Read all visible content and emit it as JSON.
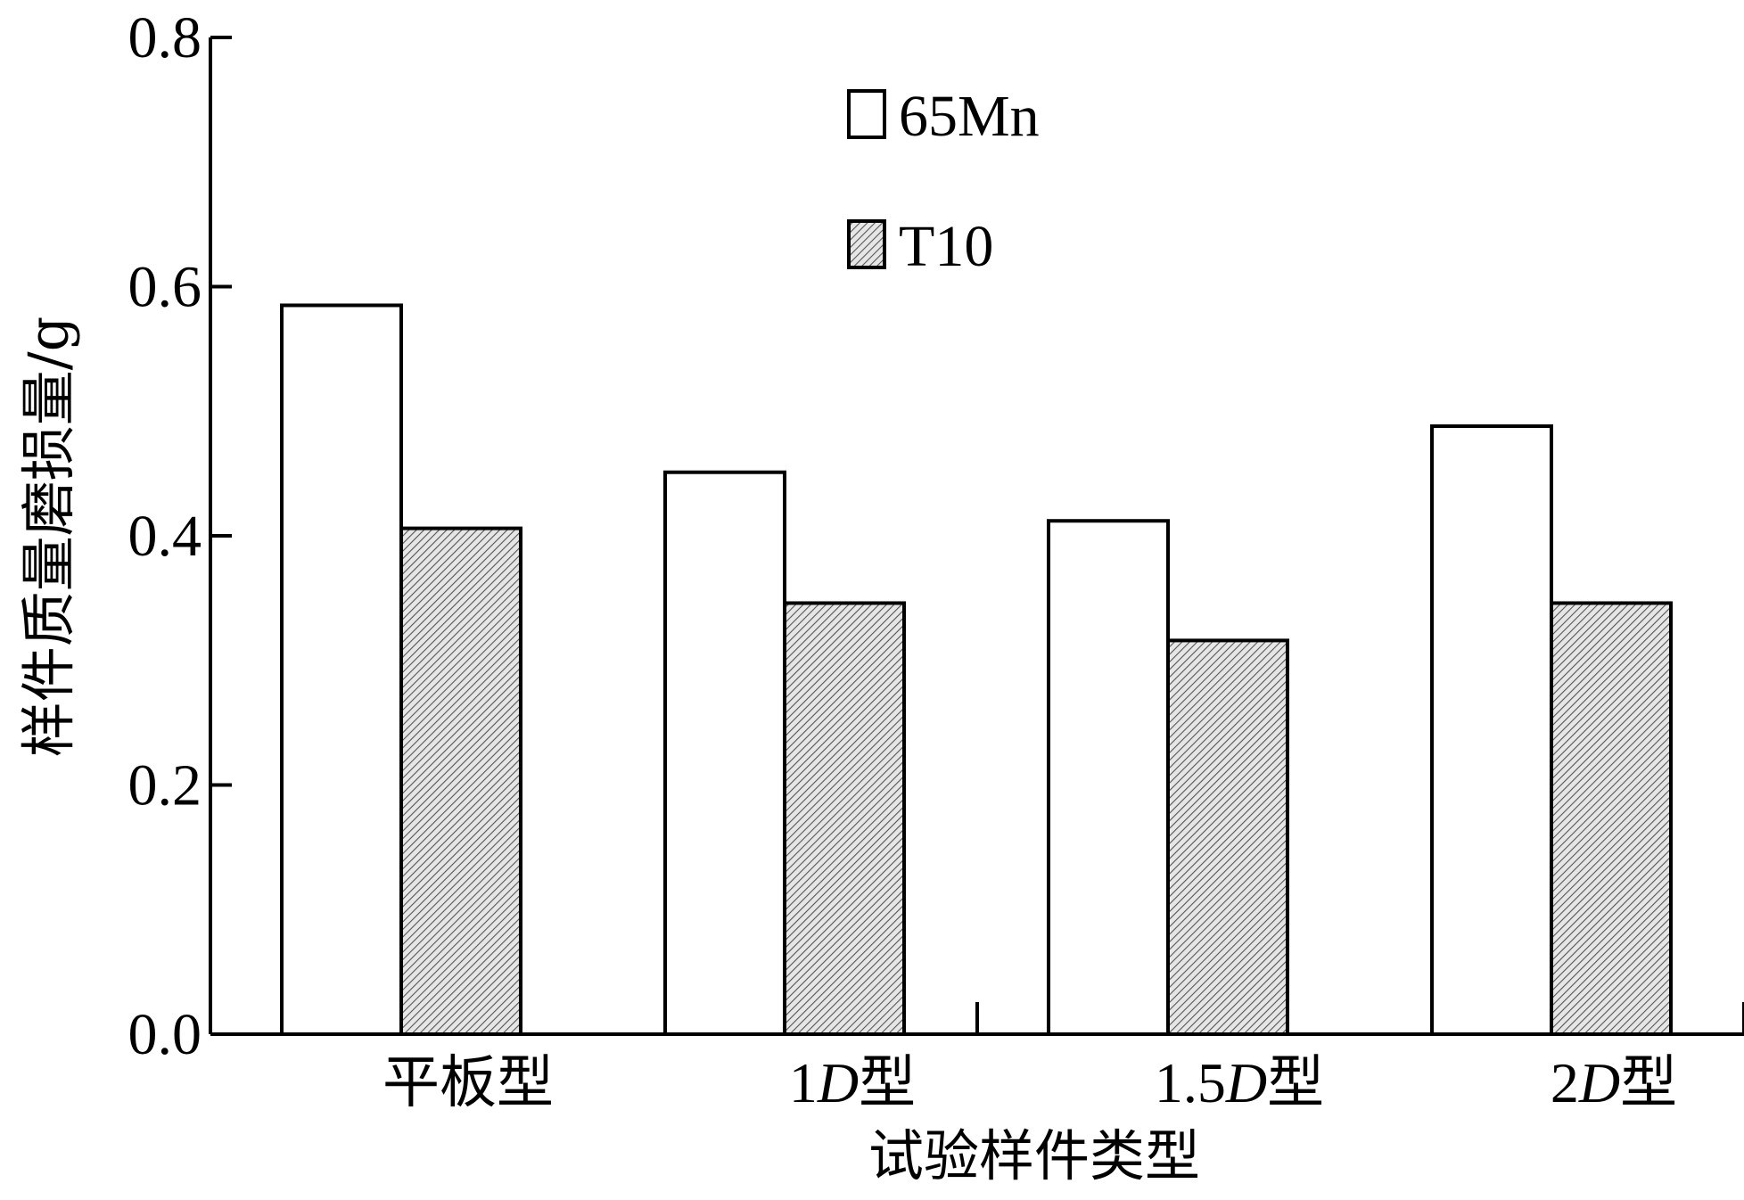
{
  "chart_data": {
    "type": "bar",
    "title": "",
    "xlabel": "试验样件类型",
    "ylabel": "样件质量磨损量/g",
    "ylim": [
      0,
      0.8
    ],
    "yticks": [
      "0.0",
      "0.2",
      "0.4",
      "0.6",
      "0.8"
    ],
    "categories": [
      {
        "prefix": "",
        "italic": "",
        "suffix": "平板型"
      },
      {
        "prefix": "1",
        "italic": "D",
        "suffix": "型"
      },
      {
        "prefix": "1.5",
        "italic": "D",
        "suffix": "型"
      },
      {
        "prefix": "2",
        "italic": "D",
        "suffix": "型"
      }
    ],
    "series": [
      {
        "name": "65Mn",
        "values": [
          0.585,
          0.451,
          0.412,
          0.488
        ],
        "fill": "#ffffff"
      },
      {
        "name": "T10",
        "values": [
          0.406,
          0.346,
          0.316,
          0.346
        ],
        "fill": "hatch"
      }
    ],
    "legend_position": "top-center",
    "grid": false
  }
}
